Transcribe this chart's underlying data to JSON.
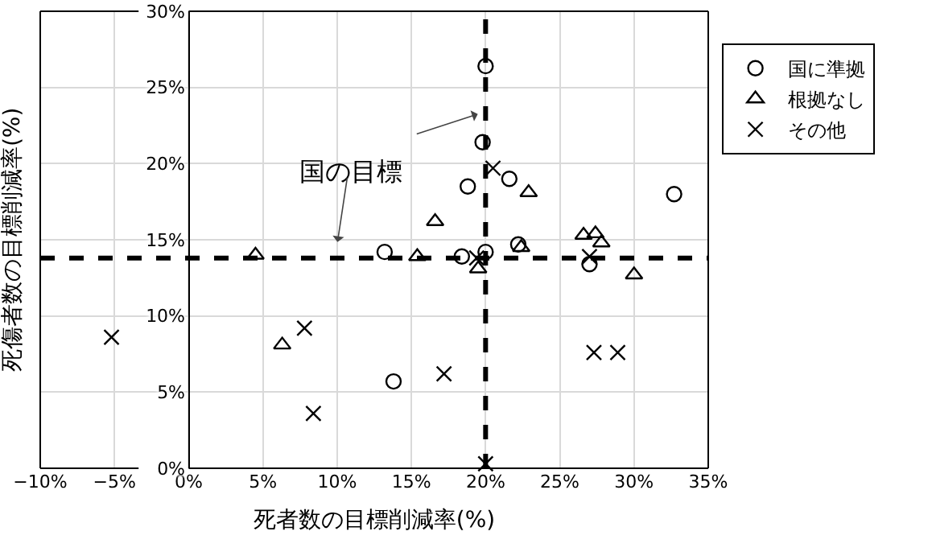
{
  "chart_data": {
    "type": "scatter",
    "xlabel": "死者数の目標削減率(%)",
    "ylabel": "死傷者数の目標削減率(%)",
    "xlim": [
      -10,
      35
    ],
    "ylim": [
      0,
      30
    ],
    "xticks": [
      {
        "value": -10,
        "label": "−10%"
      },
      {
        "value": -5,
        "label": "−5%"
      },
      {
        "value": 0,
        "label": "0%"
      },
      {
        "value": 5,
        "label": "5%"
      },
      {
        "value": 10,
        "label": "10%"
      },
      {
        "value": 15,
        "label": "15%"
      },
      {
        "value": 20,
        "label": "20%"
      },
      {
        "value": 25,
        "label": "25%"
      },
      {
        "value": 30,
        "label": "30%"
      },
      {
        "value": 35,
        "label": "35%"
      }
    ],
    "yticks": [
      {
        "value": 0,
        "label": "0%"
      },
      {
        "value": 5,
        "label": "5%"
      },
      {
        "value": 10,
        "label": "10%"
      },
      {
        "value": 15,
        "label": "15%"
      },
      {
        "value": 20,
        "label": "20%"
      },
      {
        "value": 25,
        "label": "25%"
      },
      {
        "value": 30,
        "label": "30%"
      }
    ],
    "grid": true,
    "legend": "top right",
    "series": [
      {
        "name": "国に準拠",
        "color": "#000000",
        "marker": "circle",
        "x": [
          20.0,
          19.8,
          18.8,
          21.6,
          32.7,
          22.2,
          20.0,
          18.4,
          27.0,
          13.2,
          13.8
        ],
        "values": [
          26.4,
          21.4,
          18.5,
          19.0,
          18.0,
          14.7,
          14.2,
          13.9,
          13.4,
          14.2,
          5.7
        ]
      },
      {
        "name": "根拠なし",
        "color": "#000000",
        "marker": "triangle",
        "x": [
          4.5,
          6.3,
          16.6,
          15.4,
          22.9,
          19.5,
          20.1,
          22.4,
          26.6,
          27.4,
          27.8,
          30.0
        ],
        "values": [
          14.0,
          8.1,
          16.2,
          13.9,
          18.1,
          13.1,
          null,
          14.5,
          15.3,
          15.4,
          14.8,
          12.7
        ]
      },
      {
        "name": "その他",
        "color": "#000000",
        "marker": "cross",
        "x": [
          -5.2,
          7.8,
          8.4,
          17.2,
          20.5,
          19.4,
          27.0,
          27.3,
          28.9,
          20.0
        ],
        "values": [
          8.6,
          9.2,
          3.6,
          6.2,
          19.7,
          13.8,
          13.9,
          7.6,
          7.6,
          0.3
        ]
      }
    ],
    "ref_lines": [
      {
        "axis": "y",
        "value": 13.8,
        "color": "#000000",
        "line_style": "dashed"
      },
      {
        "axis": "x",
        "value": 20,
        "color": "#000000",
        "line_style": "dashed"
      }
    ],
    "annotations": [
      "国の目標"
    ]
  }
}
